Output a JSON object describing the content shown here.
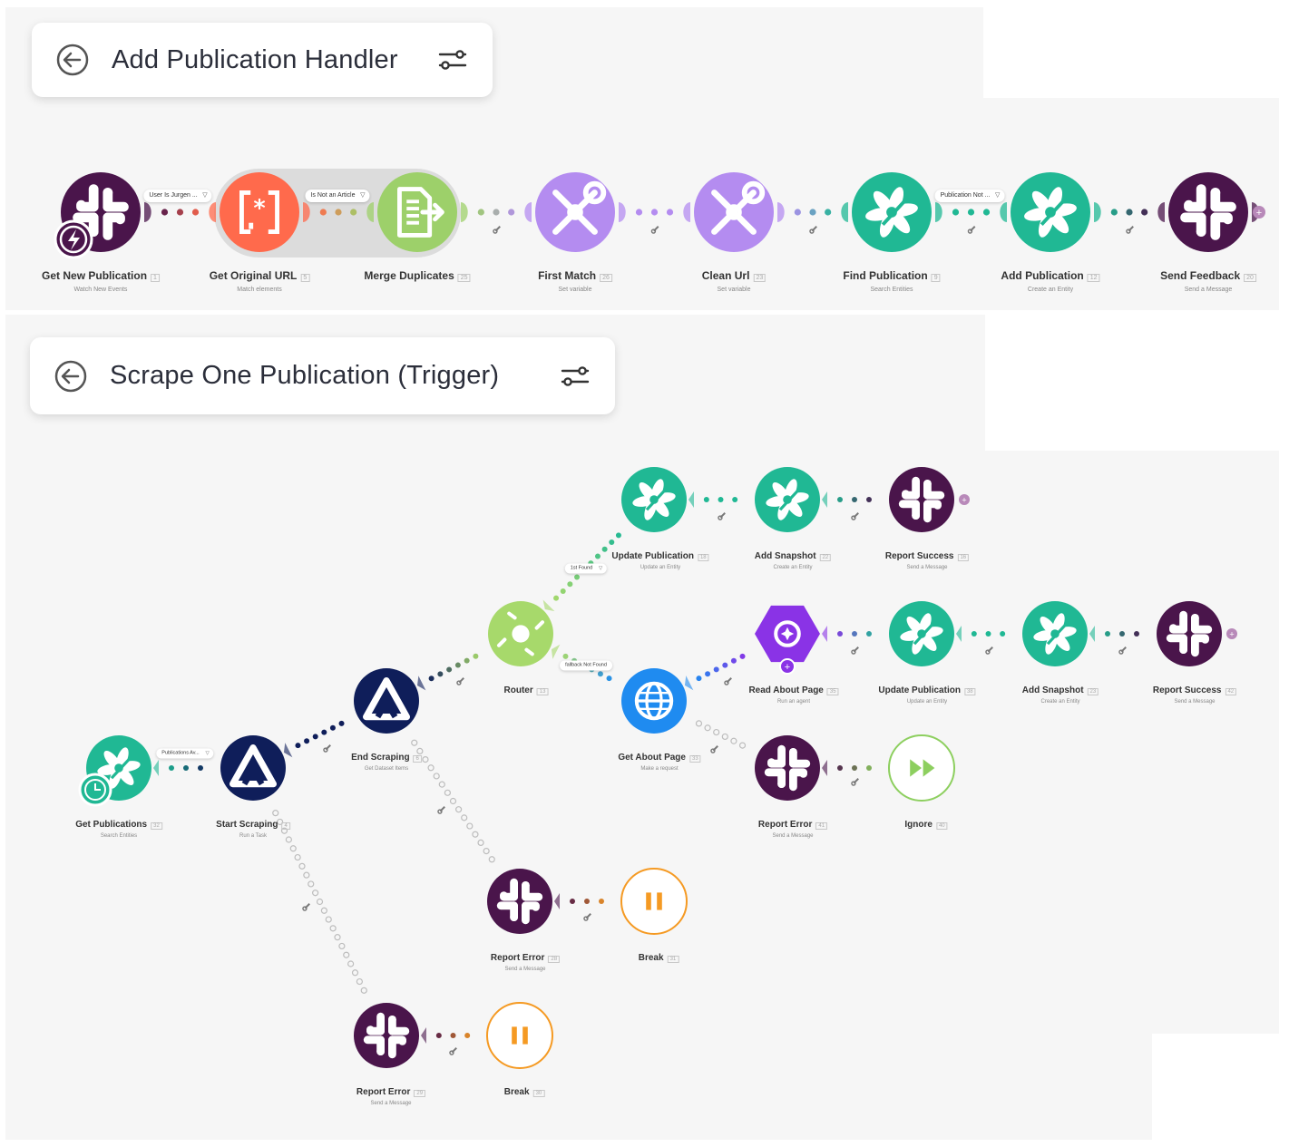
{
  "scenario1": {
    "title": "Add Publication Handler",
    "nodes": [
      {
        "name": "Get New Publication",
        "id": "1",
        "sub": "Watch New Events"
      },
      {
        "name": "Get Original URL",
        "id": "5",
        "sub": "Match elements"
      },
      {
        "name": "Merge Duplicates",
        "id": "25",
        "sub": ""
      },
      {
        "name": "First Match",
        "id": "26",
        "sub": "Set variable"
      },
      {
        "name": "Clean Url",
        "id": "23",
        "sub": "Set variable"
      },
      {
        "name": "Find Publication",
        "id": "9",
        "sub": "Search Entities"
      },
      {
        "name": "Add Publication",
        "id": "12",
        "sub": "Create an Entity"
      },
      {
        "name": "Send Feedback",
        "id": "20",
        "sub": "Send a Message"
      }
    ],
    "filters": [
      {
        "label": "User Is Jurgen ..."
      },
      {
        "label": "Is Not an Article"
      },
      {
        "label": "Publication Not ..."
      }
    ]
  },
  "scenario2": {
    "title": "Scrape One Publication (Trigger)",
    "nodes": [
      {
        "name": "Get Publications",
        "id": "32",
        "sub": "Search Entities"
      },
      {
        "name": "Start Scraping",
        "id": "4",
        "sub": "Run a Task"
      },
      {
        "name": "End Scraping",
        "id": "6",
        "sub": "Get Dataset Items"
      },
      {
        "name": "Router",
        "id": "13",
        "sub": ""
      },
      {
        "name": "Update Publication",
        "id": "18",
        "sub": "Update an Entity"
      },
      {
        "name": "Add Snapshot",
        "id": "22",
        "sub": "Create an Entity"
      },
      {
        "name": "Report Success",
        "id": "16",
        "sub": "Send a Message"
      },
      {
        "name": "Get About Page",
        "id": "33",
        "sub": "Make a request"
      },
      {
        "name": "Read About Page",
        "id": "35",
        "sub": "Run an agent"
      },
      {
        "name": "Update Publication",
        "id": "38",
        "sub": "Update an Entity"
      },
      {
        "name": "Add Snapshot",
        "id": "23",
        "sub": "Create an Entity"
      },
      {
        "name": "Report Success",
        "id": "42",
        "sub": "Send a Message"
      },
      {
        "name": "Report Error",
        "id": "41",
        "sub": "Send a Message"
      },
      {
        "name": "Ignore",
        "id": "40",
        "sub": ""
      },
      {
        "name": "Report Error",
        "id": "28",
        "sub": "Send a Message"
      },
      {
        "name": "Break",
        "id": "31",
        "sub": ""
      },
      {
        "name": "Report Error",
        "id": "29",
        "sub": "Send a Message"
      },
      {
        "name": "Break",
        "id": "30",
        "sub": ""
      }
    ],
    "filters": [
      {
        "label": "Publications Av..."
      },
      {
        "label": "1st   Found"
      },
      {
        "label": "fallback   Not Found"
      }
    ]
  },
  "colors": {
    "slack": "#4a154b",
    "regex": "#ff6a4c",
    "merge": "#9dd06a",
    "tools": "#b48cf0",
    "zoho": "#20b894",
    "router": "#a7d96b",
    "apify": "#0f1e5a",
    "http": "#1f8bf0",
    "ai": "#8a33e6",
    "pause": "#f59a23",
    "ignore": "#8dcf5f"
  },
  "icons": [
    "back-arrow-icon",
    "filter-settings-icon",
    "slack-icon",
    "regex-icon",
    "merge-icon",
    "tools-icon",
    "zoho-icon",
    "router-icon",
    "apify-icon",
    "globe-icon",
    "ai-agent-icon",
    "pause-icon",
    "fast-forward-icon",
    "lightning-icon",
    "clock-icon",
    "wrench-icon",
    "plus-icon"
  ]
}
